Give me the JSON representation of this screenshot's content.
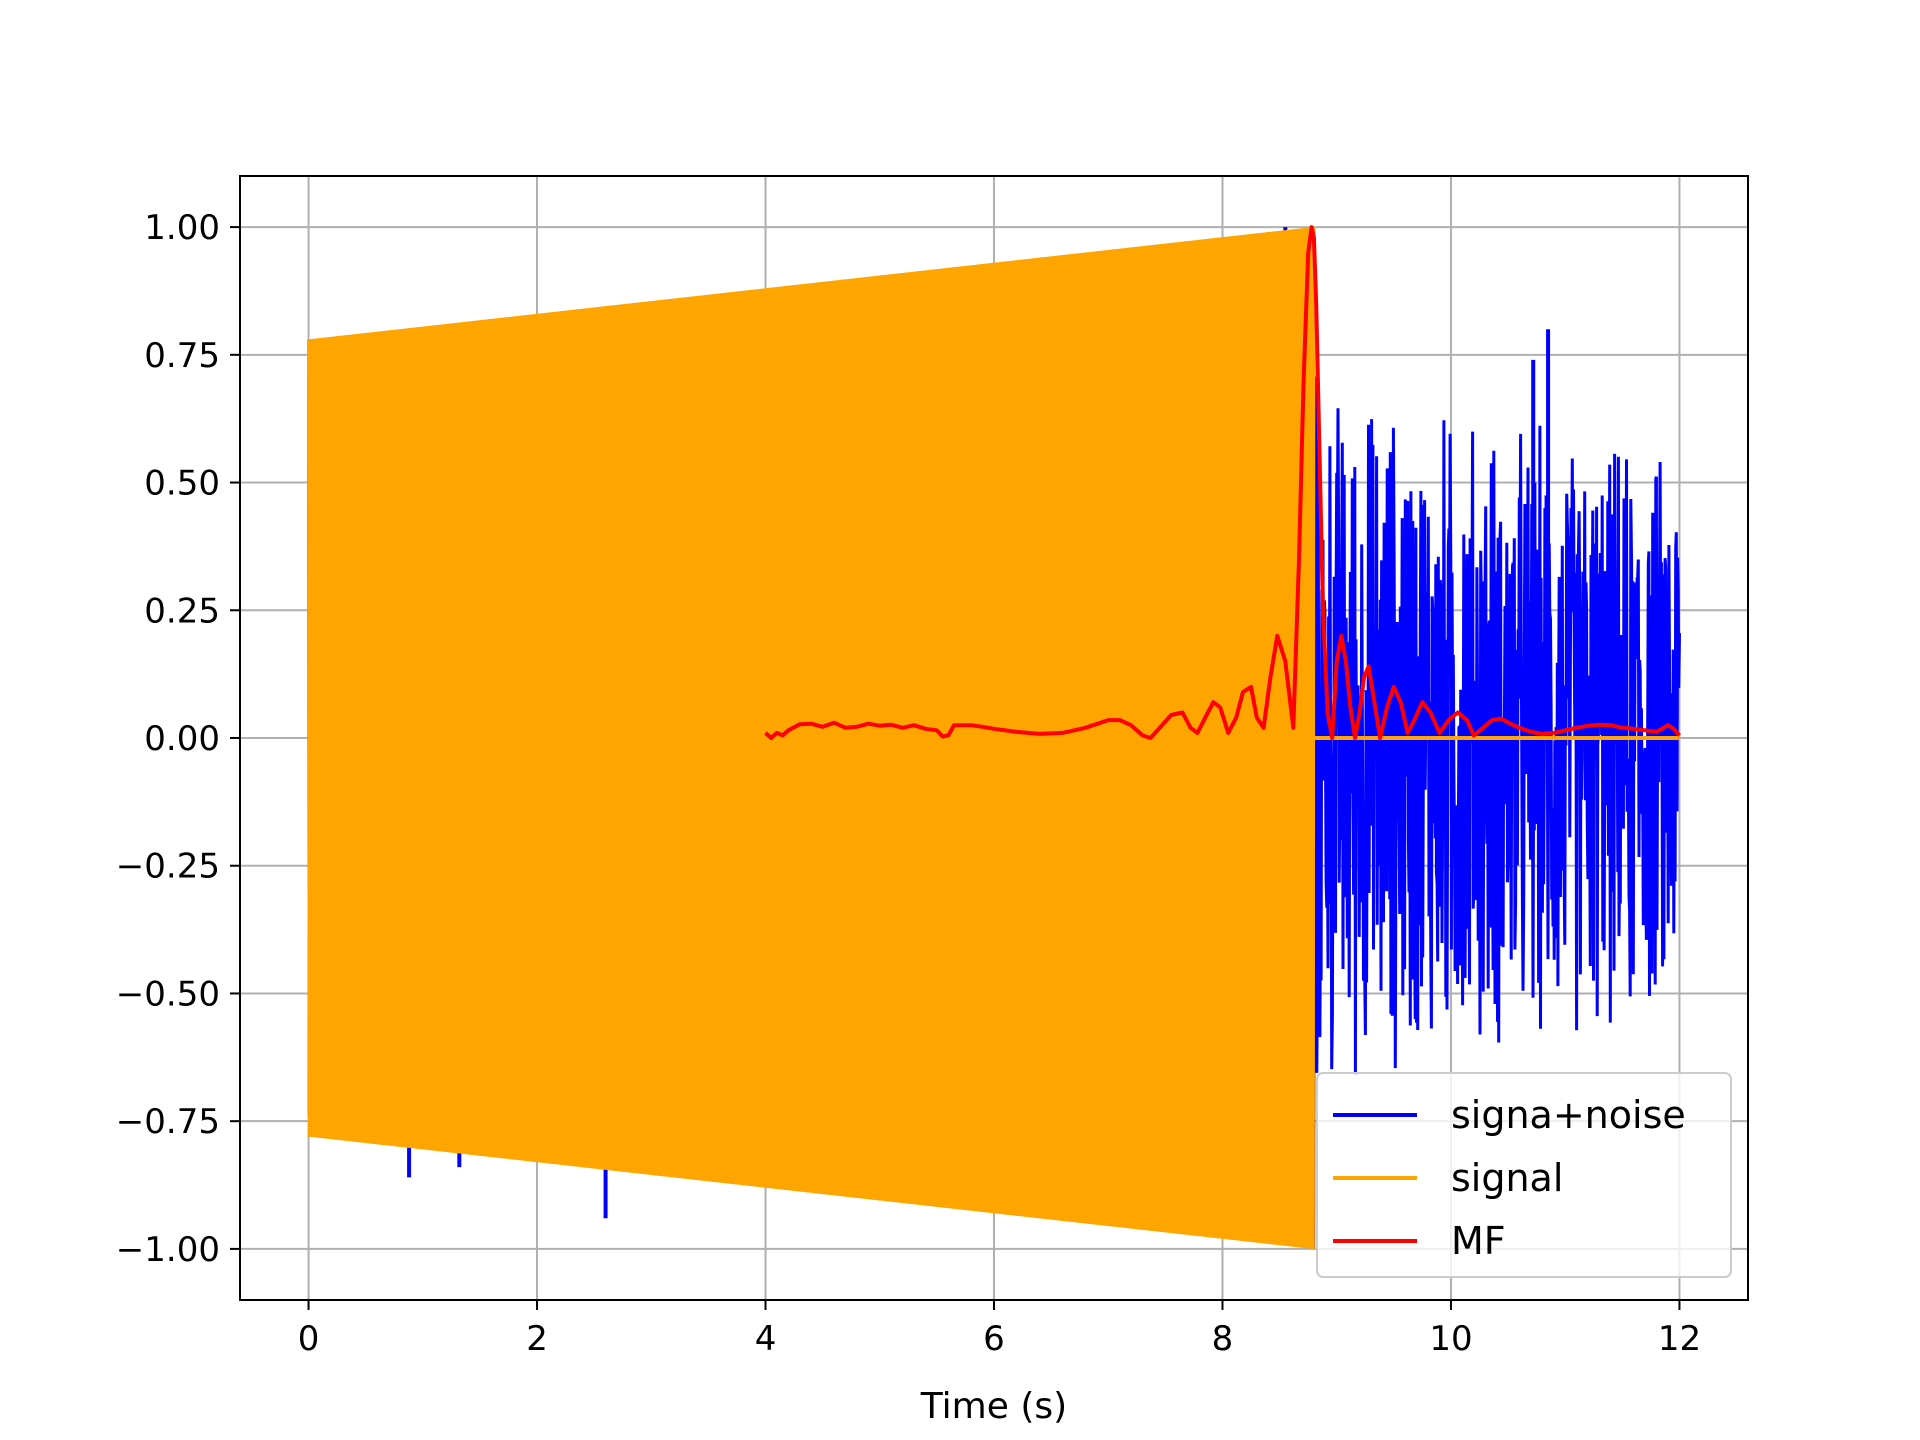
{
  "chart_data": {
    "type": "line",
    "title": "",
    "xlabel": "Time (s)",
    "ylabel": "",
    "xlim": [
      -0.6,
      12.6
    ],
    "ylim": [
      -1.1,
      1.1
    ],
    "xticks": [
      0,
      2,
      4,
      6,
      8,
      10,
      12
    ],
    "xtick_labels": [
      "0",
      "2",
      "4",
      "6",
      "8",
      "10",
      "12"
    ],
    "yticks": [
      1.0,
      0.75,
      0.5,
      0.25,
      0.0,
      -0.25,
      -0.5,
      -0.75,
      -1.0
    ],
    "ytick_labels": [
      "1.00",
      "0.75",
      "0.50",
      "0.25",
      "0.00",
      "−0.25",
      "−0.50",
      "−0.75",
      "−1.00"
    ],
    "grid": true,
    "legend_position": "lower-right",
    "series": [
      {
        "name": "signa+noise",
        "color": "#0000ff",
        "style": "dense noisy oscillation",
        "x_range": [
          0,
          12
        ],
        "envelope_upper": [
          [
            0,
            0.78
          ],
          [
            8.8,
            1.0
          ],
          [
            8.85,
            0.75
          ],
          [
            12,
            0.6
          ]
        ],
        "envelope_lower": [
          [
            0,
            -0.78
          ],
          [
            8.8,
            -1.0
          ],
          [
            8.85,
            -0.75
          ],
          [
            12,
            -0.6
          ]
        ],
        "peaks": [
          {
            "x": 3.15,
            "y": 0.85
          },
          {
            "x": 4.4,
            "y": 0.88
          },
          {
            "x": 8.55,
            "y": 1.0
          },
          {
            "x": 0.88,
            "y": -0.86
          },
          {
            "x": 1.32,
            "y": -0.84
          },
          {
            "x": 2.6,
            "y": -0.94
          },
          {
            "x": 10.85,
            "y": 0.8
          },
          {
            "x": 10.72,
            "y": 0.74
          }
        ]
      },
      {
        "name": "signal",
        "color": "#ffa500",
        "style": "chirp oscillation with linearly increasing amplitude, then zero",
        "x": [
          0,
          8.8,
          8.8,
          12
        ],
        "upper": [
          0.78,
          1.0,
          0.0,
          0.0
        ],
        "lower": [
          -0.78,
          -1.0,
          0.0,
          0.0
        ]
      },
      {
        "name": "MF",
        "color": "#ff0000",
        "style": "matched filter output",
        "x": [
          4.0,
          4.05,
          4.1,
          4.15,
          4.2,
          4.3,
          4.4,
          4.5,
          4.6,
          4.7,
          4.8,
          4.9,
          5.0,
          5.1,
          5.2,
          5.3,
          5.4,
          5.5,
          5.55,
          5.6,
          5.65,
          5.7,
          5.8,
          5.9,
          6.0,
          6.2,
          6.4,
          6.6,
          6.8,
          7.0,
          7.1,
          7.2,
          7.3,
          7.37,
          7.45,
          7.55,
          7.65,
          7.72,
          7.78,
          7.85,
          7.92,
          7.98,
          8.05,
          8.12,
          8.18,
          8.25,
          8.3,
          8.36,
          8.42,
          8.48,
          8.55,
          8.62,
          8.67,
          8.71,
          8.75,
          8.78,
          8.8,
          8.82,
          8.85,
          8.88,
          8.92,
          8.96,
          9.0,
          9.04,
          9.08,
          9.12,
          9.16,
          9.2,
          9.24,
          9.28,
          9.33,
          9.38,
          9.44,
          9.5,
          9.56,
          9.62,
          9.68,
          9.75,
          9.82,
          9.9,
          9.98,
          10.06,
          10.14,
          10.2,
          10.28,
          10.36,
          10.44,
          10.52,
          10.6,
          10.7,
          10.8,
          10.9,
          11.0,
          11.1,
          11.2,
          11.3,
          11.4,
          11.5,
          11.6,
          11.7,
          11.8,
          11.9,
          11.95,
          12.0
        ],
        "y": [
          0.01,
          0.0,
          0.01,
          0.005,
          0.015,
          0.027,
          0.028,
          0.022,
          0.03,
          0.02,
          0.022,
          0.028,
          0.024,
          0.026,
          0.02,
          0.025,
          0.018,
          0.015,
          0.003,
          0.005,
          0.025,
          0.025,
          0.025,
          0.022,
          0.018,
          0.012,
          0.008,
          0.01,
          0.02,
          0.035,
          0.035,
          0.025,
          0.005,
          0.0,
          0.02,
          0.045,
          0.05,
          0.02,
          0.01,
          0.04,
          0.07,
          0.06,
          0.01,
          0.04,
          0.09,
          0.1,
          0.04,
          0.02,
          0.12,
          0.2,
          0.15,
          0.02,
          0.35,
          0.7,
          0.95,
          1.0,
          0.98,
          0.85,
          0.55,
          0.25,
          0.05,
          0.0,
          0.15,
          0.2,
          0.15,
          0.06,
          0.0,
          0.05,
          0.12,
          0.14,
          0.07,
          0.0,
          0.06,
          0.1,
          0.07,
          0.01,
          0.035,
          0.07,
          0.05,
          0.01,
          0.035,
          0.05,
          0.035,
          0.005,
          0.02,
          0.035,
          0.038,
          0.028,
          0.02,
          0.012,
          0.008,
          0.01,
          0.015,
          0.02,
          0.024,
          0.026,
          0.025,
          0.02,
          0.018,
          0.015,
          0.012,
          0.025,
          0.018,
          0.005
        ]
      }
    ]
  }
}
